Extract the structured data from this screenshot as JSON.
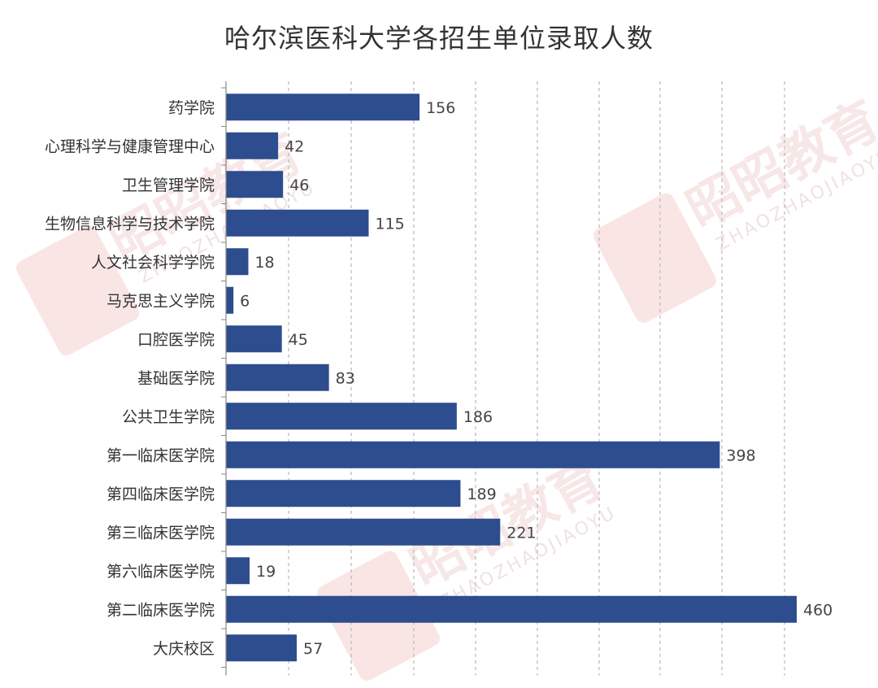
{
  "chart_data": {
    "type": "bar",
    "orientation": "horizontal",
    "title": "哈尔滨医科大学各招生单位录取人数",
    "categories": [
      "药学院",
      "心理科学与健康管理中心",
      "卫生管理学院",
      "生物信息科学与技术学院",
      "人文社会科学学院",
      "马克思主义学院",
      "口腔医学院",
      "基础医学院",
      "公共卫生学院",
      "第一临床医学院",
      "第四临床医学院",
      "第三临床医学院",
      "第六临床医学院",
      "第二临床医学院",
      "大庆校区"
    ],
    "values": [
      156,
      42,
      46,
      115,
      18,
      6,
      45,
      83,
      186,
      398,
      189,
      221,
      19,
      460,
      57
    ],
    "xlim": [
      0,
      460
    ],
    "grid": true,
    "bar_color": "#2e4d8f",
    "data_labels": true
  },
  "watermark": {
    "text": "昭昭教育",
    "sub": "ZHAOZHAOJIAOYU"
  }
}
